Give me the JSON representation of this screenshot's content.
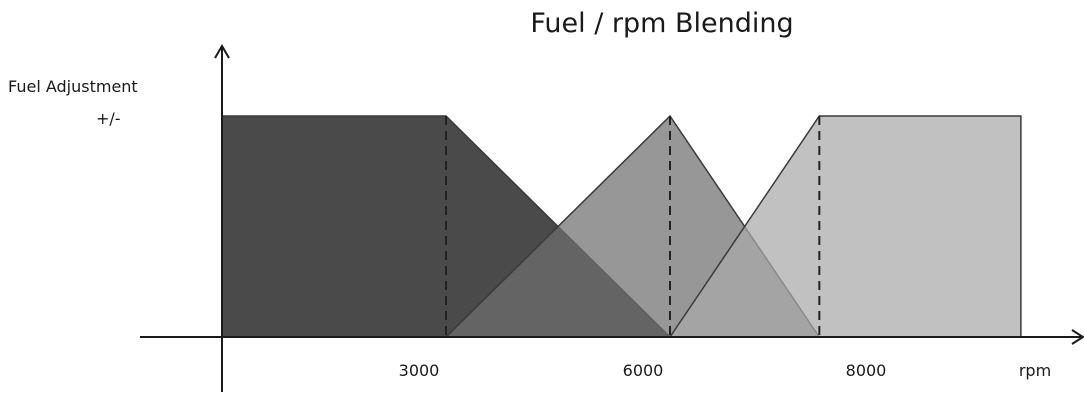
{
  "title": "Fuel / rpm Blending",
  "y_axis": {
    "label_line1": "Fuel Adjustment",
    "label_line2": "+/-"
  },
  "x_axis": {
    "unit_label": "rpm",
    "ticks": [
      "3000",
      "6000",
      "8000"
    ]
  },
  "regions": [
    {
      "name": "below-3000-rpm-map",
      "rpm_points": [
        0,
        0,
        3000,
        6000
      ],
      "level": [
        0,
        1,
        1,
        0
      ],
      "color": "#4a4a4a"
    },
    {
      "name": "6000-rpm-map",
      "rpm_points": [
        3000,
        6000,
        8000
      ],
      "level": [
        0,
        1,
        0
      ],
      "color": "#6f6f6f"
    },
    {
      "name": "above-8000-rpm-map",
      "rpm_points": [
        6000,
        8000,
        10700,
        10700
      ],
      "level": [
        0,
        1,
        1,
        0
      ],
      "color": "#a9a9a9"
    }
  ],
  "dashed_markers_rpm": [
    3000,
    6000,
    8000
  ],
  "colors": {
    "axis": "#1a1a1a",
    "dash": "#222222",
    "text": "#1a1a1a"
  }
}
